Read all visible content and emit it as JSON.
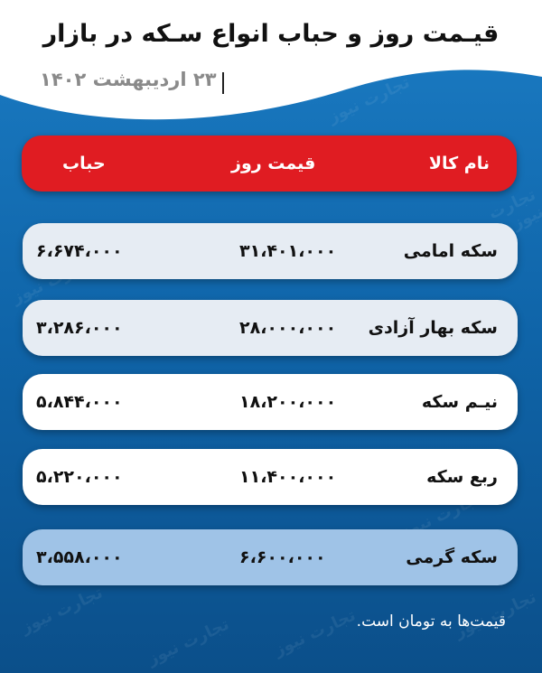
{
  "title": "قیـمت روز و حباب انواع سـکه در بازار",
  "date": "۲۳ اردیبهشت ۱۴۰۲",
  "watermark": "تجارت نیوز",
  "colors": {
    "header": "#e01c22",
    "background": "#1270b5",
    "row_light": "#e6ecf3",
    "row_white": "#ffffff",
    "row_blue": "#9fc3e7"
  },
  "table": {
    "headers": {
      "name": "نام کالا",
      "price": "قیمت روز",
      "bubble": "حباب"
    },
    "rows": [
      {
        "name": "سکه امامی",
        "price": "۳۱،۴۰۱،۰۰۰",
        "bubble": "۶،۶۷۴،۰۰۰"
      },
      {
        "name": "سکه بهار آزادی",
        "price": "۲۸،۰۰۰،۰۰۰",
        "bubble": "۳،۲۸۶،۰۰۰"
      },
      {
        "name": "نیـم سکه",
        "price": "۱۸،۲۰۰،۰۰۰",
        "bubble": "۵،۸۴۴،۰۰۰"
      },
      {
        "name": "ربع سکه",
        "price": "۱۱،۴۰۰،۰۰۰",
        "bubble": "۵،۲۲۰،۰۰۰"
      },
      {
        "name": "سکه گرمی",
        "price": "۶،۶۰۰،۰۰۰",
        "bubble": "۳،۵۵۸،۰۰۰"
      }
    ]
  },
  "note": "قیمت‌ها به تومان است."
}
